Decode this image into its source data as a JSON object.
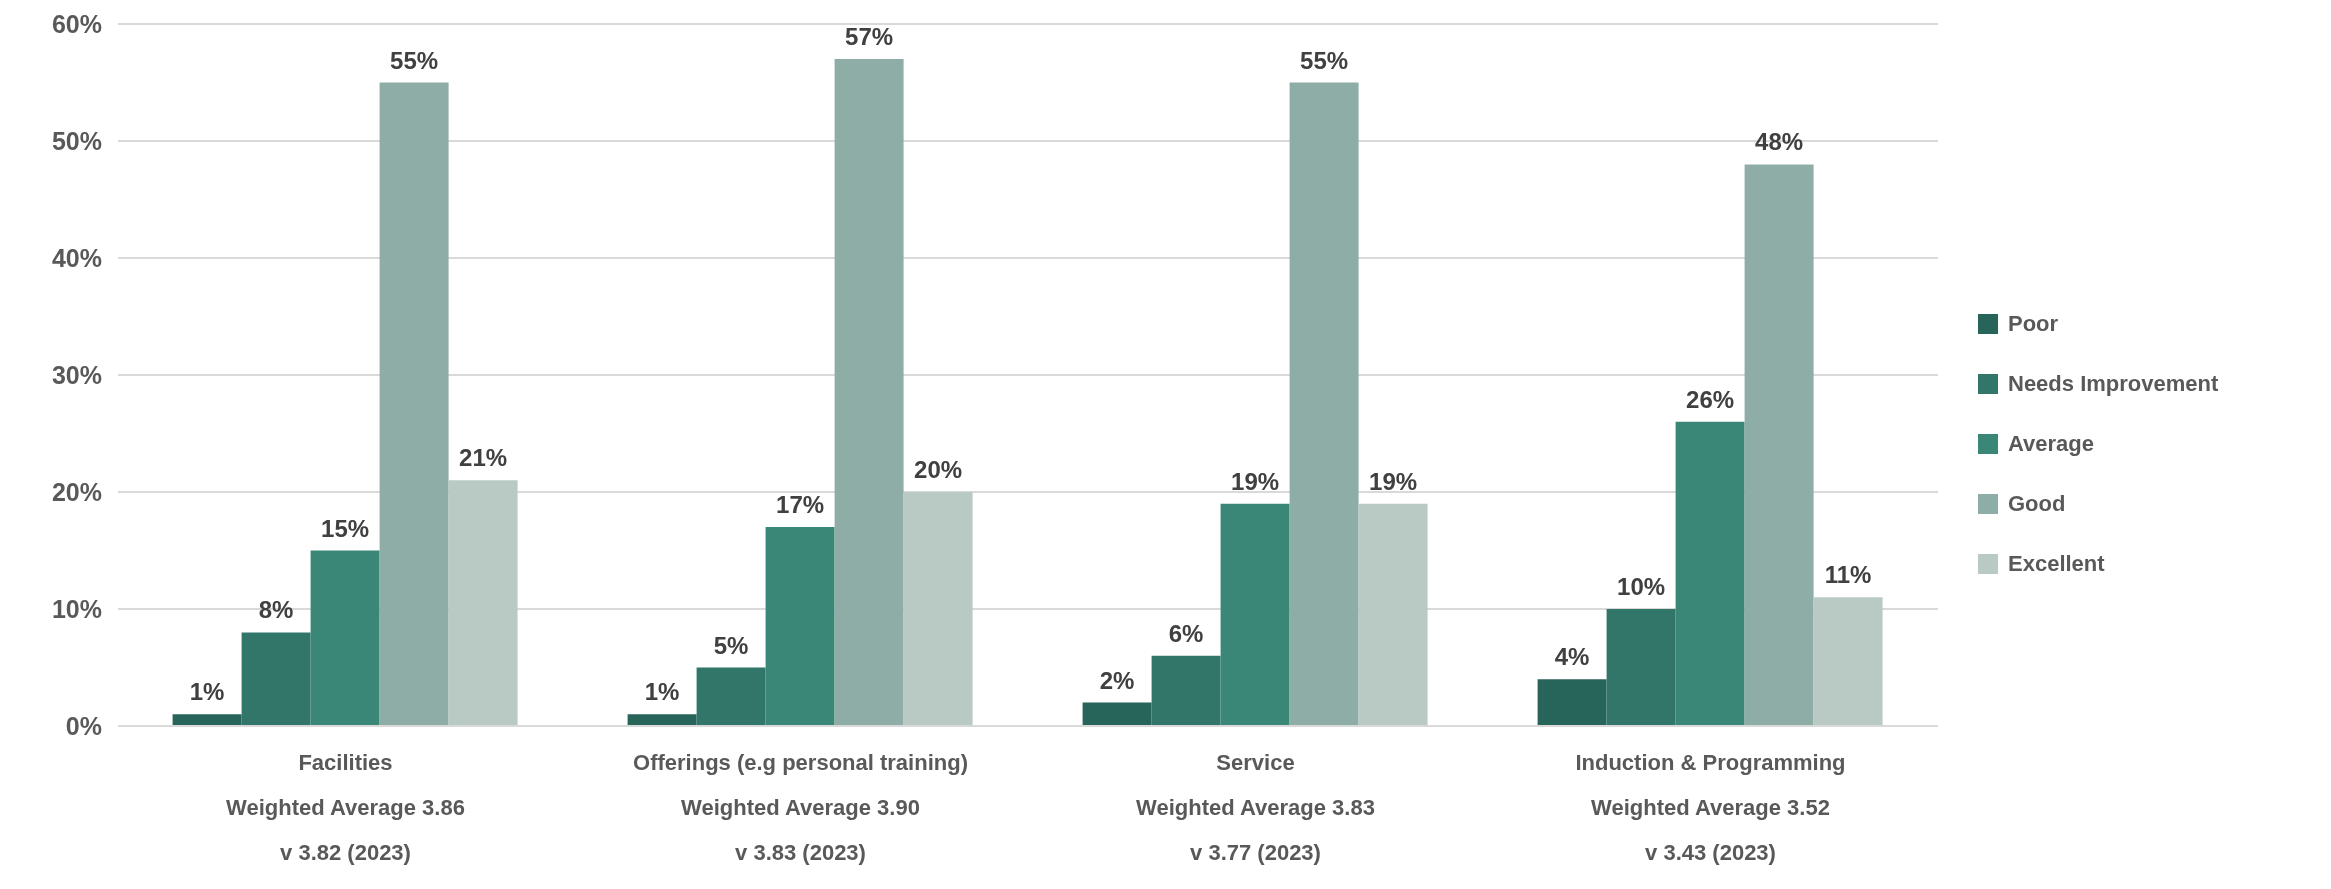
{
  "chart_data": {
    "type": "bar",
    "categories": [
      "Facilities\nWeighted Average 3.86\nv 3.82 (2023)",
      "Offerings (e.g personal training)\nWeighted Average 3.90\nv 3.83 (2023)",
      "Service\nWeighted Average 3.83\nv 3.77 (2023)",
      "Induction & Programming\nWeighted Average 3.52\nv 3.43 (2023)"
    ],
    "series": [
      {
        "name": "Poor",
        "color": "#27645a",
        "values": [
          1,
          1,
          2,
          4
        ],
        "value_labels": [
          "1%",
          "1%",
          "2%",
          "4%"
        ]
      },
      {
        "name": "Needs Improvement",
        "color": "#317668",
        "values": [
          8,
          5,
          6,
          10
        ],
        "value_labels": [
          "8%",
          "5%",
          "6%",
          "10%"
        ]
      },
      {
        "name": "Average",
        "color": "#3b8777",
        "values": [
          15,
          17,
          19,
          26
        ],
        "value_labels": [
          "15%",
          "17%",
          "19%",
          "26%"
        ]
      },
      {
        "name": "Good",
        "color": "#8eada6",
        "values": [
          55,
          57,
          55,
          48
        ],
        "value_labels": [
          "55%",
          "57%",
          "55%",
          "48%"
        ]
      },
      {
        "name": "Excellent",
        "color": "#b9cac5",
        "values": [
          21,
          20,
          19,
          11
        ],
        "value_labels": [
          "21%",
          "20%",
          "19%",
          "11%"
        ]
      }
    ],
    "ylim": [
      0,
      60
    ],
    "yticks": [
      {
        "value": 0,
        "label": "0%"
      },
      {
        "value": 10,
        "label": "10%"
      },
      {
        "value": 20,
        "label": "20%"
      },
      {
        "value": 30,
        "label": "30%"
      },
      {
        "value": 40,
        "label": "40%"
      },
      {
        "value": 50,
        "label": "50%"
      },
      {
        "value": 60,
        "label": "60%"
      }
    ],
    "grid": "y",
    "legend": "right"
  }
}
